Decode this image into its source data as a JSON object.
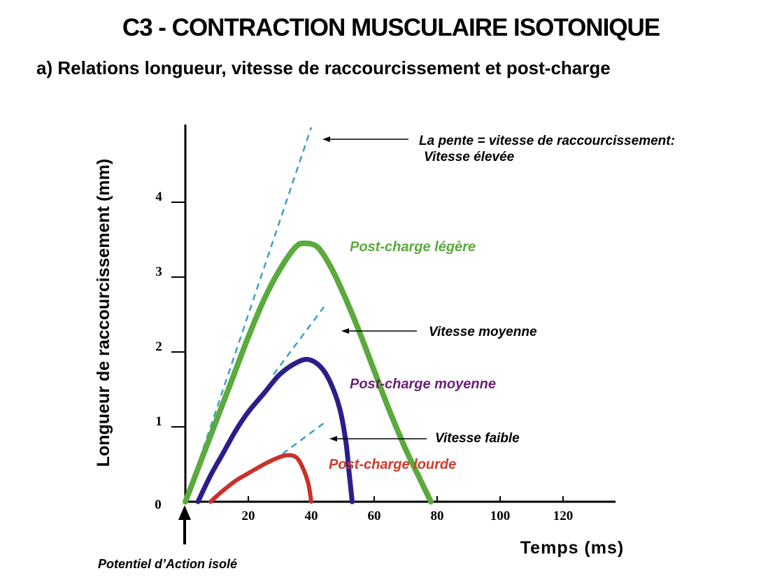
{
  "page": {
    "title": "C3 - CONTRACTION MUSCULAIRE ISOTONIQUE",
    "subtitle": "a) Relations longueur, vitesse de raccourcissement et post-charge"
  },
  "chart_data": {
    "type": "line",
    "title": "C3 - CONTRACTION MUSCULAIRE ISOTONIQUE",
    "subtitle": "a) Relations longueur, vitesse de raccourcissement et post-charge",
    "xlabel": "Temps (ms)",
    "ylabel": "Longueur de raccourcissement (mm)",
    "xlim": [
      0,
      132
    ],
    "ylim": [
      0,
      5.2
    ],
    "x_ticks": [
      20,
      40,
      60,
      80,
      100,
      120
    ],
    "y_ticks": [
      1,
      2,
      3,
      4
    ],
    "origin_label": "0",
    "series": [
      {
        "name": "Post-charge légère",
        "color": "#5aaa3c",
        "points": [
          [
            0,
            0
          ],
          [
            5,
            0.55
          ],
          [
            10,
            1.1
          ],
          [
            15,
            1.65
          ],
          [
            20,
            2.2
          ],
          [
            25,
            2.7
          ],
          [
            30,
            3.1
          ],
          [
            35,
            3.4
          ],
          [
            38,
            3.45
          ],
          [
            42,
            3.4
          ],
          [
            46,
            3.15
          ],
          [
            50,
            2.8
          ],
          [
            55,
            2.3
          ],
          [
            60,
            1.75
          ],
          [
            65,
            1.2
          ],
          [
            70,
            0.7
          ],
          [
            74,
            0.35
          ],
          [
            78,
            0
          ]
        ]
      },
      {
        "name": "Post-charge moyenne",
        "color": "#2a1f8a",
        "points": [
          [
            4,
            0
          ],
          [
            8,
            0.35
          ],
          [
            12,
            0.65
          ],
          [
            16,
            0.95
          ],
          [
            20,
            1.2
          ],
          [
            25,
            1.45
          ],
          [
            30,
            1.7
          ],
          [
            35,
            1.85
          ],
          [
            39,
            1.9
          ],
          [
            43,
            1.8
          ],
          [
            46,
            1.6
          ],
          [
            49,
            1.25
          ],
          [
            51,
            0.8
          ],
          [
            52,
            0.4
          ],
          [
            53,
            0
          ]
        ]
      },
      {
        "name": "Post-charge lourde",
        "color": "#c8322a",
        "points": [
          [
            8,
            0
          ],
          [
            12,
            0.15
          ],
          [
            16,
            0.28
          ],
          [
            20,
            0.38
          ],
          [
            25,
            0.5
          ],
          [
            29,
            0.58
          ],
          [
            32,
            0.62
          ],
          [
            35,
            0.6
          ],
          [
            37,
            0.48
          ],
          [
            39,
            0.25
          ],
          [
            40,
            0
          ]
        ]
      }
    ],
    "slope_lines": [
      {
        "name": "Vitesse élevée",
        "color": "#3aa0c4",
        "points": [
          [
            0,
            0
          ],
          [
            40,
            5.0
          ]
        ]
      },
      {
        "name": "Vitesse moyenne",
        "color": "#3aa0c4",
        "points": [
          [
            28,
            1.7
          ],
          [
            44,
            2.6
          ]
        ]
      },
      {
        "name": "Vitesse faible",
        "color": "#3aa0c4",
        "points": [
          [
            28,
            0.55
          ],
          [
            44,
            1.05
          ]
        ]
      }
    ],
    "annotations": {
      "slope_title": "La pente = vitesse de raccourcissement:",
      "slope_high": "Vitesse élevée",
      "slope_medium": "Vitesse moyenne",
      "slope_low": "Vitesse faible",
      "stimulus": "Potentiel d’Action isolé"
    },
    "series_labels": {
      "light": "Post-charge légère",
      "medium": "Post-charge moyenne",
      "heavy": "Post-charge lourde"
    }
  }
}
